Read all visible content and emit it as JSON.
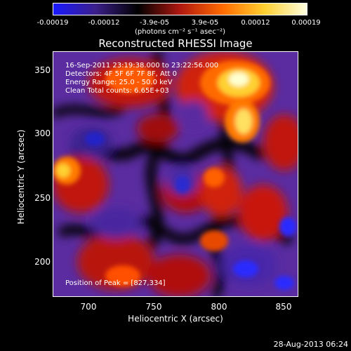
{
  "colorbar": {
    "ticks": [
      "-0.00019",
      "-0.00012",
      "-3.9e-05",
      "3.9e-05",
      "0.00012",
      "0.00019"
    ],
    "units": "(photons cm⁻² s⁻¹ asec⁻²)",
    "colors": [
      "#1a1aff",
      "#3b1f8a",
      "#000000",
      "#b01810",
      "#ff6a00",
      "#ffd030",
      "#ffffe0"
    ]
  },
  "plot": {
    "title": "Reconstructed RHESSI Image",
    "time_range": "16-Sep-2011 23:19:38.000 to 23:22:56.000",
    "detectors": "Detectors: 4F 5F 6F 7F 8F, Att 0",
    "energy": "Energy Range: 25.0 - 50.0 keV",
    "clean": "Clean     Total counts: 6.65E+03",
    "peak": "Position of Peak = [827,334]",
    "xlabel": "Heliocentric X (arcsec)",
    "ylabel": "Heliocentric Y (arcsec)",
    "xticks": [
      "700",
      "750",
      "800",
      "850"
    ],
    "yticks": [
      "350",
      "300",
      "250",
      "200"
    ]
  },
  "footer": {
    "date": "28-Aug-2013 06:24"
  }
}
